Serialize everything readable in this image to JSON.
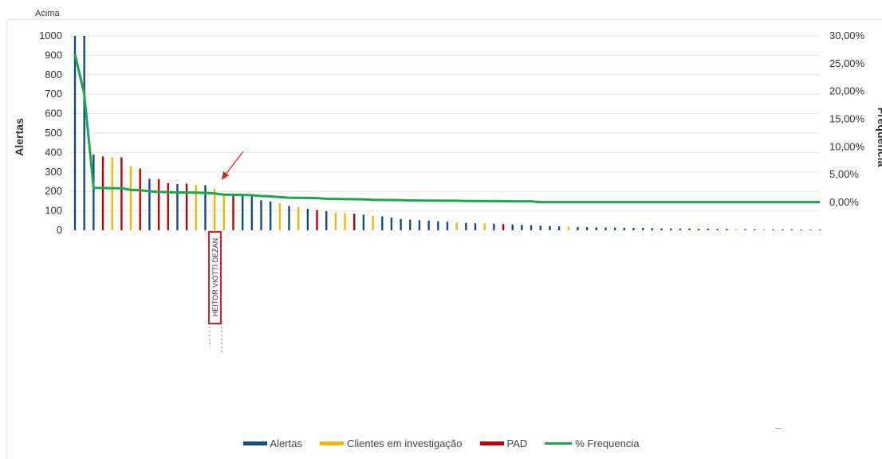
{
  "chart_data": {
    "type": "bar",
    "corner_label": "Acima",
    "ylabel": "Alertas",
    "y2label": "Frequencia",
    "ylim": [
      0,
      1000
    ],
    "y_ticks": [
      "1000",
      "900",
      "800",
      "700",
      "600",
      "500",
      "400",
      "300",
      "200",
      "100",
      "0"
    ],
    "y2_ticks": [
      "30,00%",
      "25,00%",
      "20,00%",
      "15,00%",
      "10,00%",
      "5,00%",
      "0,00%"
    ],
    "grid": true,
    "legend_position": "bottom",
    "highlighted_label": "HEITOR VIOTTI DEZAN",
    "colors": {
      "Alertas": "#0f4c8a",
      "Clientes em investigação": "#f5b800",
      "PAD": "#c00000",
      "% Frequencia": "#1aa84a"
    },
    "series": [
      {
        "name": "Alertas",
        "kind": "bar"
      },
      {
        "name": "Clientes em investigação",
        "kind": "bar"
      },
      {
        "name": "PAD",
        "kind": "bar"
      },
      {
        "name": "% Frequencia",
        "kind": "line"
      }
    ],
    "bars": [
      {
        "v": 1000,
        "c": "Alertas"
      },
      {
        "v": 1000,
        "c": "Alertas"
      },
      {
        "v": 390,
        "c": "Alertas"
      },
      {
        "v": 380,
        "c": "PAD"
      },
      {
        "v": 375,
        "c": "Clientes em investigação"
      },
      {
        "v": 375,
        "c": "PAD"
      },
      {
        "v": 330,
        "c": "Clientes em investigação"
      },
      {
        "v": 318,
        "c": "PAD"
      },
      {
        "v": 265,
        "c": "Alertas"
      },
      {
        "v": 262,
        "c": "PAD"
      },
      {
        "v": 242,
        "c": "PAD"
      },
      {
        "v": 238,
        "c": "Alertas"
      },
      {
        "v": 240,
        "c": "PAD"
      },
      {
        "v": 235,
        "c": "Clientes em investigação"
      },
      {
        "v": 232,
        "c": "Alertas"
      },
      {
        "v": 215,
        "c": "Clientes em investigação"
      },
      {
        "v": 190,
        "c": "Clientes em investigação"
      },
      {
        "v": 185,
        "c": "PAD"
      },
      {
        "v": 180,
        "c": "Alertas"
      },
      {
        "v": 175,
        "c": "Alertas"
      },
      {
        "v": 155,
        "c": "Alertas"
      },
      {
        "v": 148,
        "c": "Alertas"
      },
      {
        "v": 140,
        "c": "Clientes em investigação"
      },
      {
        "v": 125,
        "c": "Alertas"
      },
      {
        "v": 122,
        "c": "Clientes em investigação"
      },
      {
        "v": 110,
        "c": "Alertas"
      },
      {
        "v": 104,
        "c": "PAD"
      },
      {
        "v": 98,
        "c": "Alertas"
      },
      {
        "v": 90,
        "c": "Clientes em investigação"
      },
      {
        "v": 88,
        "c": "Clientes em investigação"
      },
      {
        "v": 85,
        "c": "PAD"
      },
      {
        "v": 80,
        "c": "Alertas"
      },
      {
        "v": 75,
        "c": "Clientes em investigação"
      },
      {
        "v": 72,
        "c": "Alertas"
      },
      {
        "v": 65,
        "c": "Alertas"
      },
      {
        "v": 58,
        "c": "Alertas"
      },
      {
        "v": 55,
        "c": "Alertas"
      },
      {
        "v": 52,
        "c": "Alertas"
      },
      {
        "v": 50,
        "c": "Alertas"
      },
      {
        "v": 46,
        "c": "Alertas"
      },
      {
        "v": 44,
        "c": "Alertas"
      },
      {
        "v": 40,
        "c": "Clientes em investigação"
      },
      {
        "v": 38,
        "c": "Alertas"
      },
      {
        "v": 36,
        "c": "Alertas"
      },
      {
        "v": 35,
        "c": "Clientes em investigação"
      },
      {
        "v": 34,
        "c": "Alertas"
      },
      {
        "v": 32,
        "c": "PAD"
      },
      {
        "v": 30,
        "c": "Alertas"
      },
      {
        "v": 28,
        "c": "Alertas"
      },
      {
        "v": 26,
        "c": "Alertas"
      },
      {
        "v": 24,
        "c": "Alertas"
      },
      {
        "v": 22,
        "c": "Alertas"
      },
      {
        "v": 20,
        "c": "Alertas"
      },
      {
        "v": 18,
        "c": "Clientes em investigação"
      },
      {
        "v": 17,
        "c": "Alertas"
      },
      {
        "v": 16,
        "c": "Alertas"
      },
      {
        "v": 15,
        "c": "Alertas"
      },
      {
        "v": 14,
        "c": "Alertas"
      },
      {
        "v": 14,
        "c": "Alertas"
      },
      {
        "v": 13,
        "c": "Alertas"
      },
      {
        "v": 12,
        "c": "Alertas"
      },
      {
        "v": 12,
        "c": "Alertas"
      },
      {
        "v": 11,
        "c": "Alertas"
      },
      {
        "v": 10,
        "c": "Alertas"
      },
      {
        "v": 10,
        "c": "Alertas"
      },
      {
        "v": 9,
        "c": "Alertas"
      },
      {
        "v": 9,
        "c": "Alertas"
      },
      {
        "v": 8,
        "c": "Alertas"
      },
      {
        "v": 8,
        "c": "Alertas"
      },
      {
        "v": 7,
        "c": "Alertas"
      },
      {
        "v": 7,
        "c": "Alertas"
      },
      {
        "v": 7,
        "c": "Clientes em investigação"
      },
      {
        "v": 6,
        "c": "Alertas"
      },
      {
        "v": 6,
        "c": "Alertas"
      },
      {
        "v": 6,
        "c": "Clientes em investigação"
      },
      {
        "v": 5,
        "c": "Alertas"
      },
      {
        "v": 5,
        "c": "Alertas"
      },
      {
        "v": 5,
        "c": "Alertas"
      },
      {
        "v": 4,
        "c": "Alertas"
      },
      {
        "v": 4,
        "c": "Alertas"
      },
      {
        "v": 4,
        "c": "Alertas"
      }
    ],
    "frequency_pct": [
      26.7,
      19.5,
      2.6,
      2.6,
      2.55,
      2.55,
      2.25,
      2.2,
      2.0,
      1.9,
      1.85,
      1.8,
      1.78,
      1.75,
      1.7,
      1.62,
      1.4,
      1.38,
      1.35,
      1.3,
      1.15,
      1.1,
      0.95,
      0.85,
      0.82,
      0.8,
      0.78,
      0.65,
      0.62,
      0.6,
      0.58,
      0.55,
      0.45,
      0.44,
      0.43,
      0.42,
      0.35,
      0.34,
      0.33,
      0.32,
      0.31,
      0.3,
      0.26,
      0.25,
      0.24,
      0.23,
      0.22,
      0.2,
      0.2,
      0.19,
      0.05,
      0.05,
      0.05,
      0.05,
      0.05,
      0.05,
      0.05,
      0.05,
      0.05,
      0.05,
      0.05,
      0.05,
      0.05,
      0.05,
      0.05,
      0.05,
      0.05,
      0.05,
      0.05,
      0.05,
      0.05,
      0.05,
      0.05,
      0.05,
      0.05,
      0.05,
      0.05,
      0.05,
      0.05,
      0.05,
      0.05
    ],
    "y2lim": [
      0,
      30
    ]
  },
  "legend": [
    {
      "label": "Alertas",
      "color": "#0f4c8a",
      "kind": "bar"
    },
    {
      "label": "Clientes em investigação",
      "color": "#f5b800",
      "kind": "bar"
    },
    {
      "label": "PAD",
      "color": "#c00000",
      "kind": "bar"
    },
    {
      "label": "% Frequencia",
      "color": "#1aa84a",
      "kind": "line"
    }
  ]
}
